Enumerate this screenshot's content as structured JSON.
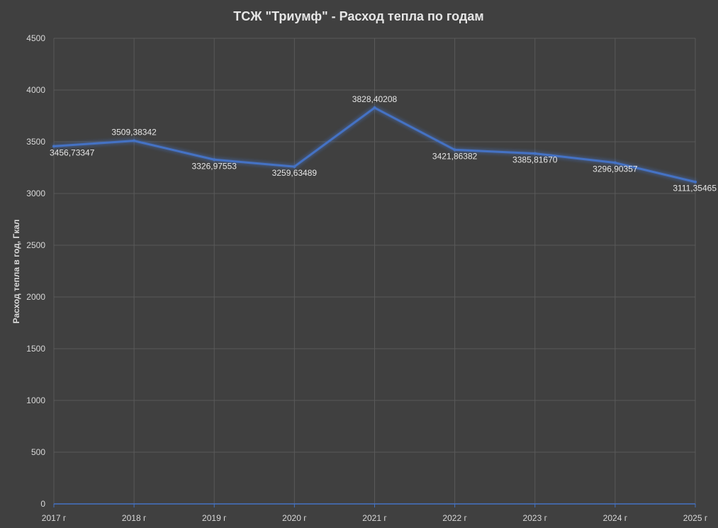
{
  "chart_data": {
    "type": "line",
    "title": "ТСЖ \"Триумф\" - Расход тепла по годам",
    "xlabel": "",
    "ylabel": "Расход тепла в год, Гкал",
    "categories": [
      "2017 г",
      "2018 г",
      "2019 г",
      "2020 г",
      "2021 г",
      "2022 г",
      "2023 г",
      "2024 г",
      "2025 г"
    ],
    "series": [
      {
        "values": [
          3456.73347,
          3509.38342,
          3326.97553,
          3259.63489,
          3828.40208,
          3421.86382,
          3385.8167,
          3296.90357,
          3111.35465
        ],
        "labels": [
          "3456,73347",
          "3509,38342",
          "3326,97553",
          "3259,63489",
          "3828,40208",
          "3421,86382",
          "3385,81670",
          "3296,90357",
          "3111,35465"
        ]
      }
    ],
    "yticks": [
      "0",
      "500",
      "1000",
      "1500",
      "2000",
      "2500",
      "3000",
      "3500",
      "4000",
      "4500"
    ],
    "ylim": [
      0,
      4500
    ],
    "grid": true,
    "colors": {
      "background": "#404040",
      "line": "#4472c4",
      "grid": "#595959",
      "axis": "#4472c4",
      "text": "#d9d9d9"
    }
  }
}
